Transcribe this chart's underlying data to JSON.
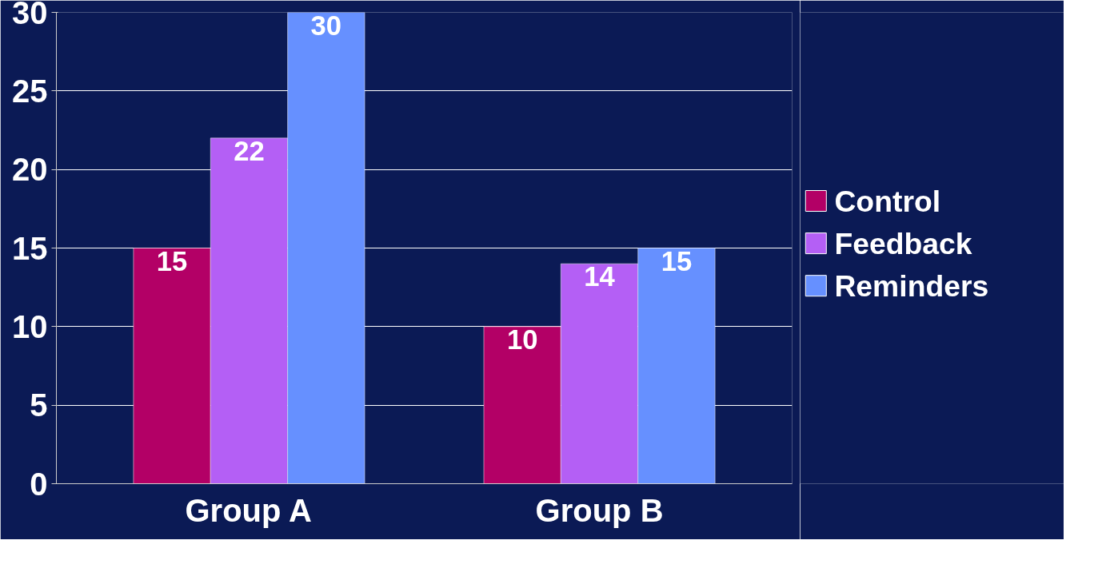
{
  "chart_data": {
    "type": "bar",
    "categories": [
      "Group A",
      "Group B"
    ],
    "series": [
      {
        "name": "Control",
        "color": "#b30066",
        "values": [
          15,
          10
        ]
      },
      {
        "name": "Feedback",
        "color": "#b45ff5",
        "values": [
          22,
          14
        ]
      },
      {
        "name": "Reminders",
        "color": "#6690ff",
        "values": [
          30,
          15
        ]
      }
    ],
    "ylim": [
      0,
      30
    ],
    "yticks": [
      0,
      5,
      10,
      15,
      20,
      25,
      30
    ],
    "grid": "y",
    "legend": "right",
    "data_labels": true
  }
}
